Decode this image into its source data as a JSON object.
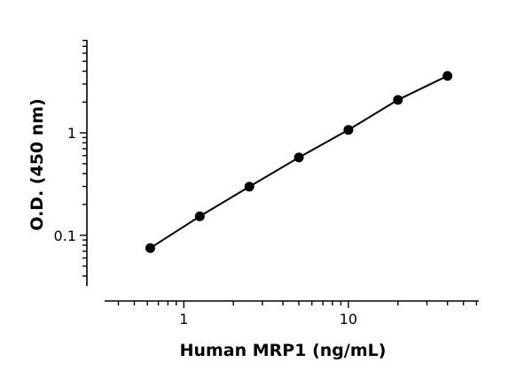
{
  "chart_data": {
    "type": "scatter",
    "title": "",
    "xlabel": "Human MRP1 (ng/mL)",
    "ylabel": "O.D. (450 nm)",
    "x_scale": "log",
    "y_scale": "log",
    "xlim": [
      0.33,
      62
    ],
    "ylim": [
      0.032,
      8.1
    ],
    "x_ticks": [
      {
        "value": 1,
        "label": "1"
      },
      {
        "value": 10,
        "label": "10"
      }
    ],
    "y_ticks": [
      {
        "value": 0.1,
        "label": "0.1"
      },
      {
        "value": 1,
        "label": "1"
      }
    ],
    "grid": false,
    "legend": "none",
    "fit_line": true,
    "series": [
      {
        "x": [
          0.625,
          1.25,
          2.5,
          5,
          10,
          20,
          40
        ],
        "y": [
          0.075,
          0.153,
          0.298,
          0.575,
          1.07,
          2.1,
          3.6
        ]
      }
    ],
    "colors": {
      "marker": "#000000",
      "line": "#000000",
      "axis": "#000000"
    }
  }
}
